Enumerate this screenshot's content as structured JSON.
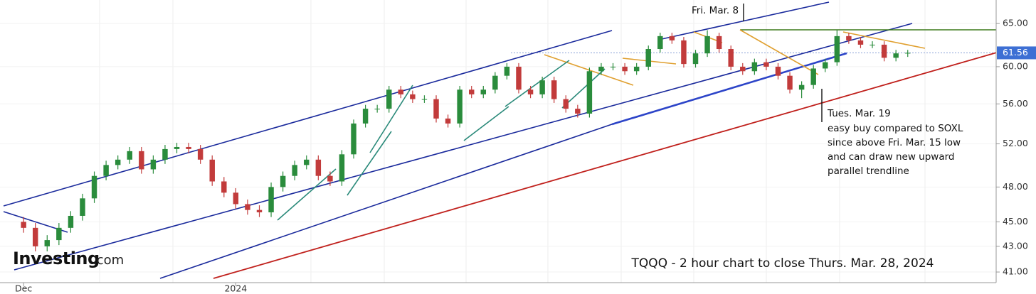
{
  "chart_data": {
    "type": "candlestick",
    "title": "TQQQ - 2 hour chart to close Thurs. Mar. 28, 2024",
    "watermark": {
      "brand": "Investing",
      "suffix": ".com"
    },
    "annotations": [
      "Fri. Mar. 8",
      "Tues. Mar. 19",
      "easy buy compared to SOXL",
      "since above Fri. Mar. 15 low",
      "and can draw new upward",
      "parallel trendline"
    ],
    "log_scale": true,
    "up_color": "#2a8c3c",
    "down_color": "#c23b3b",
    "last_price": 61.56,
    "last_price_color": "#3d6fd4",
    "xlim": [
      -2,
      82.5
    ],
    "xticks": [
      {
        "value": 0,
        "label": "Dec"
      },
      {
        "value": 18,
        "label": "2024"
      }
    ],
    "ylim": [
      40.2,
      67.9
    ],
    "yticks": [
      {
        "value": 41,
        "label": "41.00"
      },
      {
        "value": 43,
        "label": "43.00"
      },
      {
        "value": 45,
        "label": "45.00"
      },
      {
        "value": 48,
        "label": "48.00"
      },
      {
        "value": 52,
        "label": "52.00"
      },
      {
        "value": 56,
        "label": "56.00"
      },
      {
        "value": 60,
        "label": "60.00"
      },
      {
        "value": 65,
        "label": "65.00"
      }
    ],
    "open": [
      45,
      44.5,
      43,
      43.5,
      44.5,
      45.5,
      47,
      49,
      50,
      50.5,
      51.3,
      49.6,
      50.5,
      51.5,
      51.7,
      51.5,
      50.5,
      48.5,
      47.5,
      46.5,
      46,
      45.8,
      48,
      49,
      50,
      50.5,
      49,
      48.5,
      51,
      54,
      55.5,
      55.5,
      57.5,
      57,
      56.5,
      56.5,
      54.5,
      54,
      57.5,
      57,
      57.5,
      59,
      60,
      57.5,
      57,
      58.5,
      56.5,
      55.5,
      55,
      59.5,
      60,
      60,
      59.5,
      60,
      62,
      63.5,
      63,
      60.3,
      61.5,
      63.5,
      62,
      60,
      59.5,
      60.5,
      60,
      59,
      57.5,
      58,
      59.8,
      60.5,
      63.5,
      63,
      62.5,
      62.5,
      61,
      61.5
    ],
    "high": [
      45.4,
      44.9,
      43.9,
      44.9,
      45.9,
      47.4,
      49.4,
      50.4,
      50.9,
      51.7,
      51.7,
      50.9,
      51.9,
      52.1,
      52.1,
      51.9,
      50.9,
      48.9,
      47.9,
      46.9,
      46.4,
      48.4,
      49.4,
      50.4,
      50.9,
      50.9,
      49.4,
      51.4,
      54.4,
      55.9,
      55.9,
      57.9,
      57.9,
      57.4,
      56.9,
      56.9,
      54.9,
      57.9,
      57.9,
      57.9,
      59.4,
      60.4,
      60.4,
      57.9,
      58.9,
      58.9,
      56.9,
      55.9,
      59.9,
      60.4,
      60.4,
      60.4,
      60.4,
      62.4,
      63.9,
      63.9,
      63.4,
      61.9,
      64.2,
      63.9,
      62.4,
      60.4,
      60.9,
      60.9,
      60.4,
      59.4,
      58.4,
      60.2,
      60.9,
      64.2,
      63.9,
      63.4,
      62.9,
      62.9,
      61.9,
      61.9
    ],
    "low": [
      44.1,
      42.6,
      42.6,
      43.1,
      44.1,
      45.1,
      46.6,
      48.6,
      49.6,
      50.1,
      49.2,
      49.2,
      50.1,
      51.1,
      51.1,
      50.1,
      48.1,
      47.1,
      46.1,
      45.6,
      45.4,
      45.4,
      47.6,
      48.6,
      49.6,
      48.6,
      48.1,
      48.1,
      50.6,
      53.6,
      55.1,
      55.1,
      56.6,
      56.1,
      56.1,
      54.1,
      53.6,
      53.6,
      56.6,
      56.6,
      57.1,
      58.6,
      57.1,
      56.6,
      56.6,
      56.1,
      55.1,
      54.6,
      54.6,
      59.1,
      59.6,
      59.1,
      59.1,
      59.6,
      61.6,
      62.6,
      59.9,
      59.9,
      61.1,
      61.6,
      59.6,
      59.1,
      59.1,
      59.6,
      58.6,
      57.1,
      56.6,
      57.6,
      59.4,
      60.1,
      62.6,
      62.1,
      62.1,
      60.6,
      60.6,
      61.1
    ],
    "close": [
      44.5,
      43,
      43.5,
      44.5,
      45.5,
      47,
      49,
      50,
      50.5,
      51.3,
      49.6,
      50.5,
      51.5,
      51.7,
      51.5,
      50.5,
      48.5,
      47.5,
      46.5,
      46,
      45.8,
      48,
      49,
      50,
      50.5,
      49,
      48.5,
      51,
      54,
      55.5,
      55.5,
      57.5,
      57,
      56.5,
      56.5,
      54.5,
      54,
      57.5,
      57,
      57.5,
      59,
      60,
      57.5,
      57,
      58.5,
      56.5,
      55.5,
      55,
      59.5,
      60,
      60,
      59.5,
      60,
      62,
      63.5,
      63,
      60.3,
      61.5,
      63.5,
      62,
      60,
      59.5,
      60.5,
      60,
      59,
      57.5,
      58,
      59.8,
      60.5,
      63.5,
      63,
      62.5,
      62.5,
      61,
      61.5,
      61.56
    ]
  }
}
